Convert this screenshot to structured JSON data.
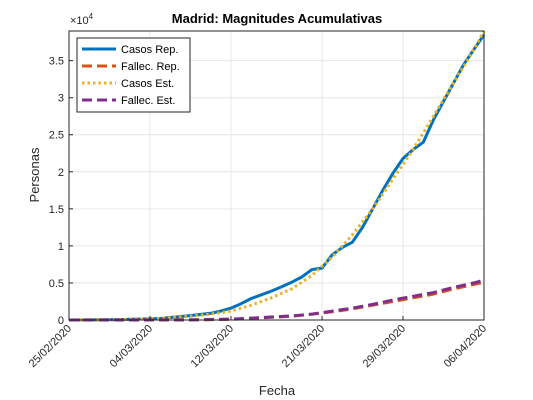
{
  "chart_data": {
    "type": "line",
    "title": "Madrid: Magnitudes Acumulativas",
    "xlabel": "Fecha",
    "ylabel": "Personas",
    "y_exponent_label": "×10",
    "y_exponent_power": "4",
    "y_scale_factor": 10000,
    "xlim": [
      "2020-02-25",
      "2020-04-06"
    ],
    "ylim": [
      0,
      39000
    ],
    "x_ticks": [
      {
        "label": "25/02/2020",
        "date": "2020-02-25"
      },
      {
        "label": "04/03/2020",
        "date": "2020-03-04"
      },
      {
        "label": "12/03/2020",
        "date": "2020-03-12"
      },
      {
        "label": "21/03/2020",
        "date": "2020-03-21"
      },
      {
        "label": "29/03/2020",
        "date": "2020-03-29"
      },
      {
        "label": "06/04/2020",
        "date": "2020-04-06"
      }
    ],
    "y_ticks": [
      {
        "label": "0",
        "value": 0
      },
      {
        "label": "0.5",
        "value": 5000
      },
      {
        "label": "1",
        "value": 10000
      },
      {
        "label": "1.5",
        "value": 15000
      },
      {
        "label": "2",
        "value": 20000
      },
      {
        "label": "2.5",
        "value": 25000
      },
      {
        "label": "3",
        "value": 30000
      },
      {
        "label": "3.5",
        "value": 35000
      }
    ],
    "grid": true,
    "legend_position": "top-left",
    "series": [
      {
        "name": "Casos Rep.",
        "color": "#0072BD",
        "style": "solid",
        "points": [
          [
            "2020-02-25",
            0
          ],
          [
            "2020-03-01",
            50
          ],
          [
            "2020-03-05",
            200
          ],
          [
            "2020-03-08",
            600
          ],
          [
            "2020-03-10",
            900
          ],
          [
            "2020-03-11",
            1200
          ],
          [
            "2020-03-12",
            1600
          ],
          [
            "2020-03-13",
            2200
          ],
          [
            "2020-03-14",
            2900
          ],
          [
            "2020-03-15",
            3400
          ],
          [
            "2020-03-16",
            3900
          ],
          [
            "2020-03-17",
            4500
          ],
          [
            "2020-03-18",
            5100
          ],
          [
            "2020-03-19",
            5800
          ],
          [
            "2020-03-20",
            6800
          ],
          [
            "2020-03-21",
            7000
          ],
          [
            "2020-03-22",
            8800
          ],
          [
            "2020-03-23",
            9800
          ],
          [
            "2020-03-24",
            10500
          ],
          [
            "2020-03-25",
            12500
          ],
          [
            "2020-03-26",
            15000
          ],
          [
            "2020-03-27",
            17500
          ],
          [
            "2020-03-28",
            19800
          ],
          [
            "2020-03-29",
            21800
          ],
          [
            "2020-03-30",
            23000
          ],
          [
            "2020-03-31",
            24000
          ],
          [
            "2020-04-01",
            27000
          ],
          [
            "2020-04-02",
            29500
          ],
          [
            "2020-04-03",
            32000
          ],
          [
            "2020-04-04",
            34500
          ],
          [
            "2020-04-05",
            36500
          ],
          [
            "2020-04-06",
            38500
          ]
        ]
      },
      {
        "name": "Fallec. Rep.",
        "color": "#D95319",
        "style": "dashed",
        "points": [
          [
            "2020-02-25",
            0
          ],
          [
            "2020-03-08",
            10
          ],
          [
            "2020-03-12",
            80
          ],
          [
            "2020-03-14",
            210
          ],
          [
            "2020-03-16",
            360
          ],
          [
            "2020-03-18",
            500
          ],
          [
            "2020-03-20",
            800
          ],
          [
            "2020-03-22",
            1100
          ],
          [
            "2020-03-24",
            1500
          ],
          [
            "2020-03-26",
            2000
          ],
          [
            "2020-03-28",
            2500
          ],
          [
            "2020-03-30",
            3000
          ],
          [
            "2020-04-01",
            3500
          ],
          [
            "2020-04-03",
            4200
          ],
          [
            "2020-04-05",
            4800
          ],
          [
            "2020-04-06",
            5100
          ]
        ]
      },
      {
        "name": "Casos Est.",
        "color": "#EDB120",
        "style": "dotted",
        "points": [
          [
            "2020-02-25",
            0
          ],
          [
            "2020-03-01",
            50
          ],
          [
            "2020-03-05",
            220
          ],
          [
            "2020-03-08",
            500
          ],
          [
            "2020-03-10",
            800
          ],
          [
            "2020-03-12",
            1200
          ],
          [
            "2020-03-14",
            2000
          ],
          [
            "2020-03-16",
            3000
          ],
          [
            "2020-03-18",
            4200
          ],
          [
            "2020-03-20",
            6000
          ],
          [
            "2020-03-22",
            8500
          ],
          [
            "2020-03-24",
            11500
          ],
          [
            "2020-03-26",
            15000
          ],
          [
            "2020-03-28",
            19000
          ],
          [
            "2020-03-30",
            23000
          ],
          [
            "2020-04-01",
            27500
          ],
          [
            "2020-04-03",
            32000
          ],
          [
            "2020-04-05",
            36500
          ],
          [
            "2020-04-06",
            39000
          ]
        ]
      },
      {
        "name": "Fallec. Est.",
        "color": "#7E2F8E",
        "style": "dashed",
        "points": [
          [
            "2020-02-25",
            0
          ],
          [
            "2020-03-08",
            20
          ],
          [
            "2020-03-12",
            120
          ],
          [
            "2020-03-14",
            250
          ],
          [
            "2020-03-16",
            400
          ],
          [
            "2020-03-18",
            550
          ],
          [
            "2020-03-20",
            800
          ],
          [
            "2020-03-22",
            1200
          ],
          [
            "2020-03-24",
            1600
          ],
          [
            "2020-03-26",
            2100
          ],
          [
            "2020-03-28",
            2700
          ],
          [
            "2020-03-30",
            3200
          ],
          [
            "2020-04-01",
            3700
          ],
          [
            "2020-04-03",
            4400
          ],
          [
            "2020-04-05",
            5000
          ],
          [
            "2020-04-06",
            5400
          ]
        ]
      }
    ]
  }
}
